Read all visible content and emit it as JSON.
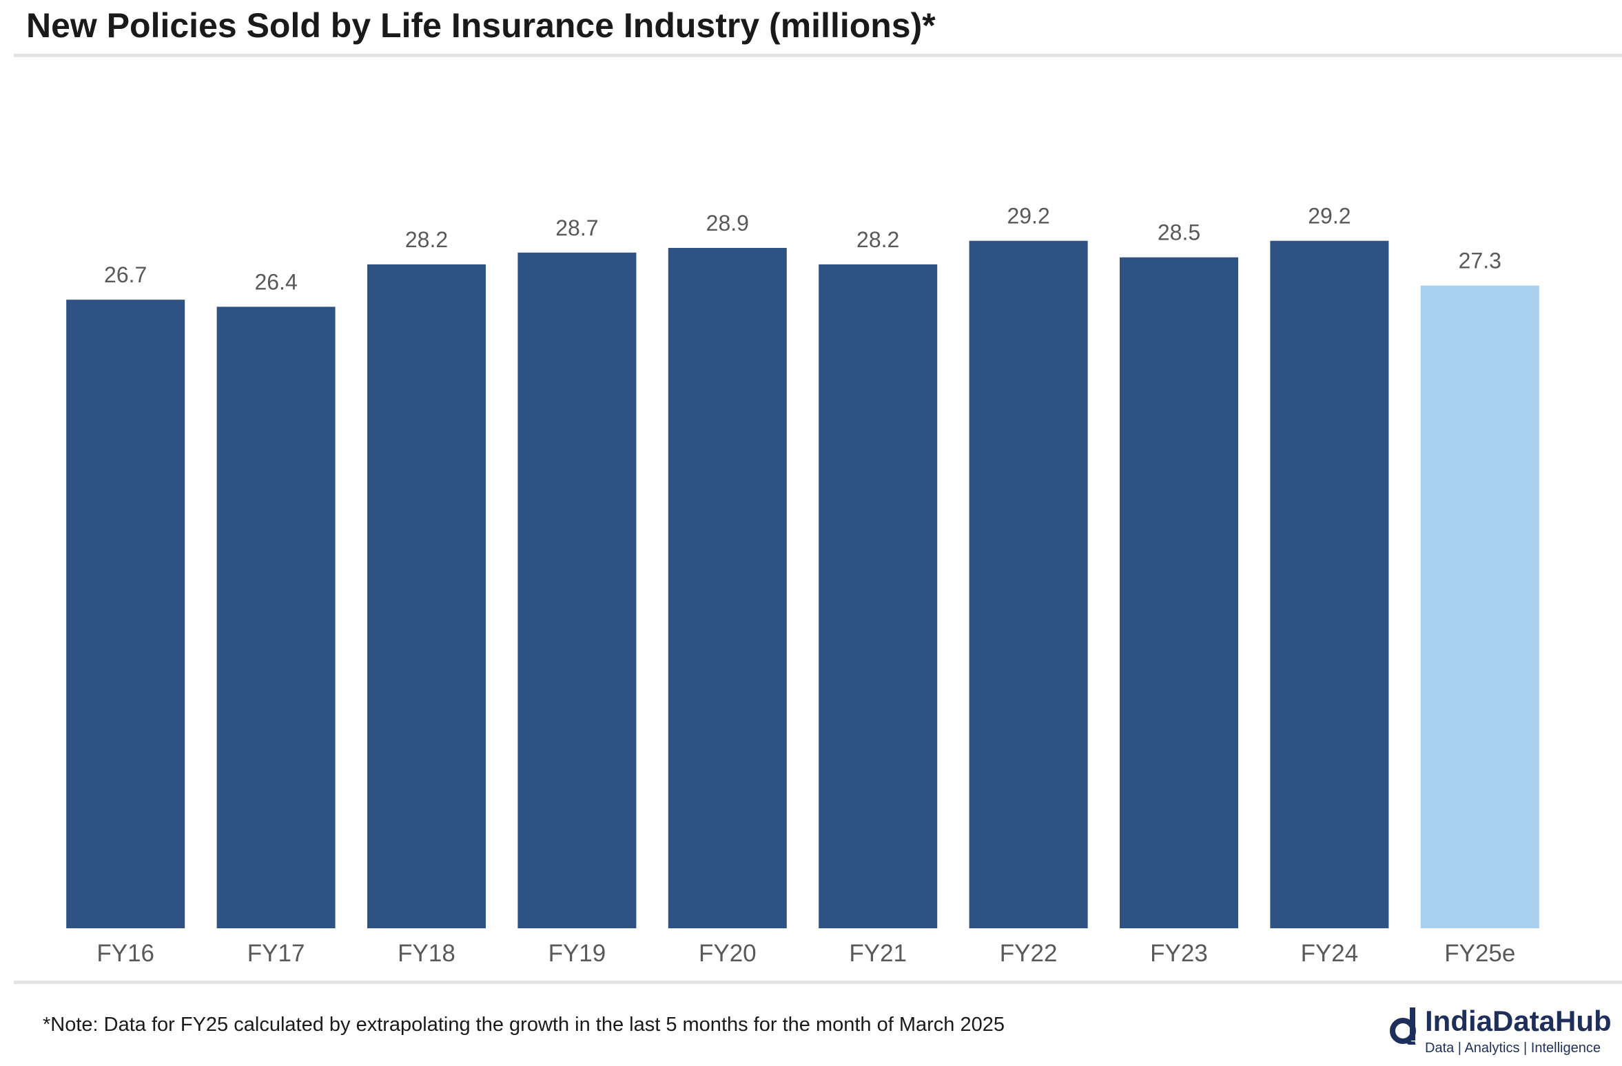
{
  "chart_data": {
    "type": "bar",
    "title": "New Policies Sold by Life Insurance Industry (millions)*",
    "categories": [
      "FY16",
      "FY17",
      "FY18",
      "FY19",
      "FY20",
      "FY21",
      "FY22",
      "FY23",
      "FY24",
      "FY25e"
    ],
    "values": [
      26.7,
      26.4,
      28.2,
      28.7,
      28.9,
      28.2,
      29.2,
      28.5,
      29.2,
      27.3
    ],
    "value_labels": [
      "26.7",
      "26.4",
      "28.2",
      "28.7",
      "28.9",
      "28.2",
      "29.2",
      "28.5",
      "29.2",
      "27.3"
    ],
    "estimated": [
      false,
      false,
      false,
      false,
      false,
      false,
      false,
      false,
      false,
      true
    ],
    "ylim": [
      0,
      32
    ],
    "xlabel": "",
    "ylabel": "",
    "grid": false,
    "colors": {
      "actual": "#2e5283",
      "estimate": "#a9d0ee",
      "label": "#595959"
    }
  },
  "footer": {
    "note": "*Note: Data for FY25 calculated by extrapolating the growth in the last 5 months for the month of March 2025"
  },
  "brand": {
    "name": "IndiaDataHub",
    "tagline": "Data | Analytics | Intelligence",
    "color": "#1f2f5c",
    "icon": "indiadatahub-logo-icon"
  }
}
